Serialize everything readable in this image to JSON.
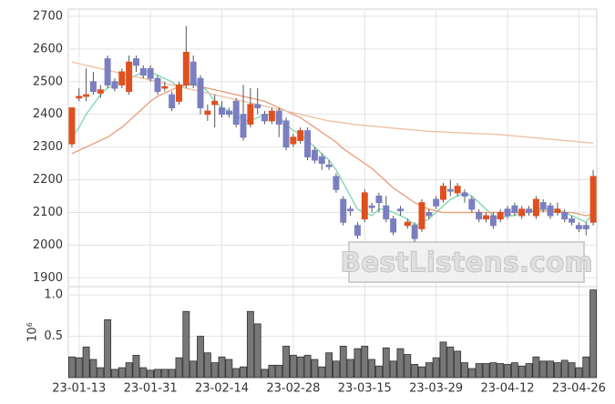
{
  "chart_data": [
    {
      "type": "candlestick",
      "watermark": "BestListens.com",
      "up_color": "#e0501f",
      "down_color": "#7b7fc0",
      "open": [
        2310,
        2450,
        2455,
        2500,
        2465,
        2570,
        2500,
        2490,
        2470,
        2570,
        2540,
        2540,
        2510,
        2480,
        2460,
        2440,
        2490,
        2560,
        2510,
        2400,
        2430,
        2420,
        2410,
        2440,
        2400,
        2370,
        2430,
        2400,
        2380,
        2410,
        2380,
        2310,
        2320,
        2350,
        2290,
        2270,
        2245,
        2210,
        2140,
        2110,
        2060,
        2080,
        2120,
        2150,
        2120,
        2080,
        2110,
        2060,
        2060,
        2050,
        2100,
        2140,
        2140,
        2170,
        2160,
        2160,
        2140,
        2100,
        2080,
        2090,
        2080,
        2110,
        2120,
        2090,
        2110,
        2090,
        2130,
        2120,
        2100,
        2100,
        2080,
        2060,
        2060,
        2070
      ],
      "high": [
        2420,
        2480,
        2540,
        2530,
        2490,
        2580,
        2510,
        2540,
        2580,
        2580,
        2550,
        2550,
        2520,
        2500,
        2470,
        2500,
        2670,
        2580,
        2520,
        2430,
        2460,
        2440,
        2420,
        2450,
        2490,
        2480,
        2480,
        2410,
        2420,
        2420,
        2390,
        2340,
        2360,
        2360,
        2300,
        2280,
        2260,
        2220,
        2150,
        2120,
        2070,
        2170,
        2130,
        2160,
        2150,
        2090,
        2120,
        2080,
        2070,
        2140,
        2110,
        2150,
        2190,
        2200,
        2190,
        2170,
        2150,
        2110,
        2100,
        2100,
        2110,
        2120,
        2130,
        2120,
        2120,
        2150,
        2140,
        2130,
        2130,
        2110,
        2090,
        2070,
        2070,
        2230
      ],
      "low": [
        2300,
        2440,
        2440,
        2460,
        2450,
        2480,
        2470,
        2480,
        2460,
        2530,
        2510,
        2500,
        2460,
        2470,
        2410,
        2430,
        2480,
        2480,
        2400,
        2380,
        2360,
        2390,
        2390,
        2360,
        2320,
        2360,
        2400,
        2370,
        2370,
        2330,
        2290,
        2300,
        2310,
        2260,
        2250,
        2230,
        2230,
        2160,
        2060,
        2090,
        2020,
        2070,
        2100,
        2100,
        2070,
        2030,
        2090,
        2050,
        2010,
        2040,
        2080,
        2110,
        2130,
        2150,
        2150,
        2130,
        2100,
        2070,
        2070,
        2050,
        2070,
        2080,
        2090,
        2080,
        2090,
        2080,
        2100,
        2080,
        2090,
        2070,
        2060,
        2040,
        2030,
        2060
      ],
      "close": [
        2420,
        2455,
        2460,
        2470,
        2475,
        2490,
        2480,
        2530,
        2560,
        2550,
        2520,
        2510,
        2470,
        2485,
        2420,
        2490,
        2590,
        2490,
        2420,
        2410,
        2440,
        2400,
        2400,
        2370,
        2330,
        2430,
        2420,
        2380,
        2410,
        2370,
        2300,
        2330,
        2350,
        2270,
        2260,
        2250,
        2240,
        2170,
        2070,
        2105,
        2030,
        2160,
        2115,
        2130,
        2080,
        2040,
        2105,
        2070,
        2020,
        2130,
        2090,
        2120,
        2180,
        2165,
        2180,
        2150,
        2110,
        2080,
        2090,
        2060,
        2100,
        2090,
        2100,
        2110,
        2100,
        2140,
        2110,
        2090,
        2110,
        2080,
        2070,
        2050,
        2050,
        2210
      ],
      "series": [
        {
          "color": "#86d6b4",
          "values": [
            2330,
            2360,
            2400,
            2430,
            2460,
            2480,
            2490,
            2500,
            2510,
            2520,
            2530,
            2530,
            2520,
            2510,
            2500,
            2480,
            2490,
            2500,
            2490,
            2470,
            2440,
            2420,
            2410,
            2400,
            2380,
            2380,
            2390,
            2400,
            2400,
            2390,
            2370,
            2350,
            2340,
            2320,
            2300,
            2280,
            2260,
            2230,
            2190,
            2150,
            2110,
            2100,
            2090,
            2110,
            2110,
            2100,
            2090,
            2080,
            2060,
            2070,
            2080,
            2100,
            2120,
            2140,
            2150,
            2160,
            2150,
            2130,
            2110,
            2090,
            2080,
            2090,
            2090,
            2100,
            2100,
            2110,
            2110,
            2110,
            2110,
            2100,
            2090,
            2080,
            2070,
            2100
          ]
        },
        {
          "color": "#e8a27e",
          "values": [
            2280,
            2290,
            2300,
            2310,
            2320,
            2330,
            2345,
            2360,
            2380,
            2400,
            2420,
            2440,
            2455,
            2465,
            2475,
            2485,
            2490,
            2490,
            2485,
            2480,
            2475,
            2470,
            2465,
            2460,
            2455,
            2450,
            2445,
            2440,
            2430,
            2420,
            2410,
            2400,
            2390,
            2375,
            2360,
            2345,
            2330,
            2315,
            2295,
            2280,
            2265,
            2250,
            2235,
            2215,
            2195,
            2175,
            2160,
            2145,
            2130,
            2120,
            2110,
            2105,
            2100,
            2100,
            2100,
            2100,
            2100,
            2100,
            2100,
            2100,
            2100,
            2100,
            2100,
            2100,
            2105,
            2105,
            2105,
            2105,
            2100,
            2100,
            2100,
            2095,
            2090,
            2095
          ]
        },
        {
          "color": "#eec1a4",
          "values": [
            2560,
            2555,
            2550,
            2545,
            2540,
            2535,
            2530,
            2525,
            2520,
            2515,
            2510,
            2505,
            2500,
            2495,
            2490,
            2485,
            2480,
            2475,
            2470,
            2465,
            2460,
            2455,
            2450,
            2445,
            2440,
            2435,
            2430,
            2425,
            2420,
            2415,
            2410,
            2405,
            2400,
            2395,
            2390,
            2385,
            2380,
            2377,
            2374,
            2371,
            2368,
            2366,
            2364,
            2362,
            2360,
            2358,
            2356,
            2354,
            2352,
            2350,
            2348,
            2347,
            2346,
            2345,
            2344,
            2343,
            2342,
            2341,
            2340,
            2339,
            2338,
            2336,
            2334,
            2332,
            2330,
            2328,
            2326,
            2324,
            2322,
            2320,
            2318,
            2316,
            2314,
            2312
          ]
        }
      ],
      "ylim": [
        1873,
        2722
      ],
      "yticks": [
        1900,
        2000,
        2100,
        2200,
        2300,
        2400,
        2500,
        2600,
        2700
      ],
      "grid": true
    },
    {
      "type": "bar",
      "ylabel": "10⁶",
      "color": "#777777",
      "categories": [
        null,
        "23-01-13",
        null,
        null,
        null,
        null,
        null,
        null,
        null,
        null,
        null,
        "23-01-31",
        null,
        null,
        null,
        null,
        null,
        null,
        null,
        null,
        null,
        "23-02-14",
        null,
        null,
        null,
        null,
        null,
        null,
        null,
        null,
        null,
        "23-02-28",
        null,
        null,
        null,
        null,
        null,
        null,
        null,
        null,
        null,
        "23-03-15",
        null,
        null,
        null,
        null,
        null,
        null,
        null,
        null,
        null,
        "23-03-29",
        null,
        null,
        null,
        null,
        null,
        null,
        null,
        null,
        null,
        "23-04-12",
        null,
        null,
        null,
        null,
        null,
        null,
        null,
        null,
        null,
        "23-04-26",
        null,
        null
      ],
      "values": [
        0.25,
        0.24,
        0.37,
        0.22,
        0.12,
        0.7,
        0.1,
        0.12,
        0.18,
        0.27,
        0.12,
        0.09,
        0.1,
        0.1,
        0.1,
        0.24,
        0.8,
        0.2,
        0.5,
        0.3,
        0.18,
        0.25,
        0.22,
        0.11,
        0.13,
        0.8,
        0.65,
        0.1,
        0.15,
        0.15,
        0.38,
        0.27,
        0.25,
        0.27,
        0.22,
        0.13,
        0.3,
        0.2,
        0.38,
        0.22,
        0.35,
        0.38,
        0.22,
        0.14,
        0.36,
        0.2,
        0.35,
        0.28,
        0.16,
        0.13,
        0.18,
        0.24,
        0.43,
        0.37,
        0.32,
        0.18,
        0.11,
        0.17,
        0.17,
        0.18,
        0.17,
        0.16,
        0.18,
        0.14,
        0.17,
        0.25,
        0.2,
        0.2,
        0.18,
        0.21,
        0.18,
        0.12,
        0.25,
        1.06
      ],
      "ylim": [
        0,
        1.1
      ],
      "yticks": [
        0.5,
        {
          "value": 1.0,
          "label": "1.0"
        }
      ],
      "grid": true
    }
  ]
}
